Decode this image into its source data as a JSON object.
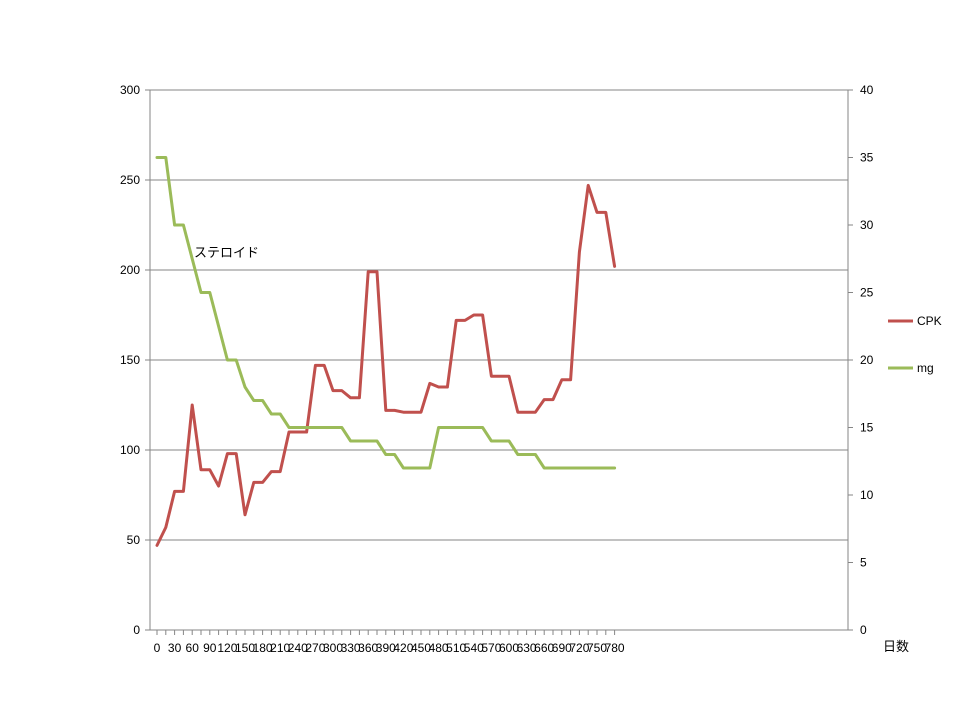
{
  "chart_data": {
    "type": "line",
    "title": "",
    "xlabel": "日数",
    "ylabel_left": "",
    "ylabel_right": "",
    "ylim_left": [
      0,
      300
    ],
    "ylim_right": [
      0,
      40
    ],
    "yticks_left": [
      0,
      50,
      100,
      150,
      200,
      250,
      300
    ],
    "yticks_right": [
      0,
      5,
      10,
      15,
      20,
      25,
      30,
      35,
      40
    ],
    "grid": "horizontal",
    "legend_position": "right",
    "annotation": "ステロイド",
    "categories": [
      "0",
      "15",
      "30",
      "45",
      "60",
      "75",
      "90",
      "105",
      "120",
      "135",
      "150",
      "165",
      "180",
      "195",
      "210",
      "225",
      "240",
      "255",
      "270",
      "285",
      "300",
      "315",
      "330",
      "345",
      "360",
      "375",
      "390",
      "405",
      "420",
      "435",
      "450",
      "465",
      "480",
      "495",
      "510",
      "525",
      "540",
      "555",
      "570",
      "585",
      "600",
      "615",
      "630",
      "645",
      "660",
      "675",
      "690",
      "705",
      "720",
      "735",
      "750",
      "765",
      "780"
    ],
    "series": [
      {
        "name": "CPK",
        "axis": "left",
        "color": "#C0504D",
        "values": [
          47,
          57,
          77,
          77,
          125,
          89,
          89,
          80,
          98,
          98,
          64,
          82,
          82,
          88,
          88,
          110,
          110,
          110,
          147,
          147,
          133,
          133,
          129,
          129,
          199,
          199,
          122,
          122,
          121,
          121,
          121,
          137,
          135,
          135,
          172,
          172,
          175,
          175,
          141,
          141,
          141,
          121,
          121,
          121,
          128,
          128,
          139,
          139,
          210,
          247,
          232,
          232,
          202
        ]
      },
      {
        "name": "mg",
        "axis": "right",
        "color": "#9BBB59",
        "values": [
          35,
          35,
          30,
          30,
          27.5,
          25,
          25,
          22.5,
          20,
          20,
          18,
          17,
          17,
          16,
          16,
          15,
          15,
          15,
          15,
          15,
          15,
          15,
          14,
          14,
          14,
          14,
          13,
          13,
          12,
          12,
          12,
          12,
          15,
          15,
          15,
          15,
          15,
          15,
          14,
          14,
          14,
          13,
          13,
          13,
          12,
          12,
          12,
          12,
          12,
          12,
          12,
          12,
          12
        ]
      }
    ]
  }
}
